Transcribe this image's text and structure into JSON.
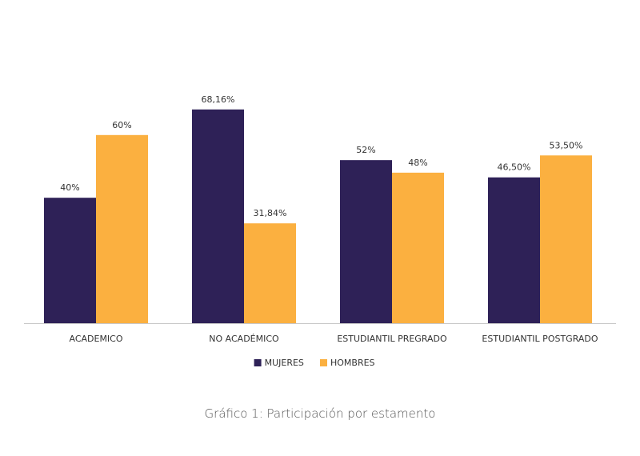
{
  "chart_data": {
    "type": "bar",
    "title": "",
    "xlabel": "",
    "ylabel": "",
    "ylim": [
      0,
      80
    ],
    "grid": false,
    "legend_position": "bottom-center",
    "categories": [
      "ACADEMICO",
      "NO ACADÉMICO",
      "ESTUDIANTIL PREGRADO",
      "ESTUDIANTIL POSTGRADO"
    ],
    "series": [
      {
        "name": "MUJERES",
        "color": "#2e2157",
        "values": [
          40,
          68.16,
          52,
          46.5
        ],
        "labels": [
          "40%",
          "68,16%",
          "52%",
          "46,50%"
        ]
      },
      {
        "name": "HOMBRES",
        "color": "#fbb040",
        "values": [
          60,
          31.84,
          48,
          53.5
        ],
        "labels": [
          "60%",
          "31,84%",
          "48%",
          "53,50%"
        ]
      }
    ]
  },
  "caption": "Gráfico 1: Participación por estamento",
  "colors": {
    "axis": "#c8c8c8",
    "text": "#333333"
  }
}
